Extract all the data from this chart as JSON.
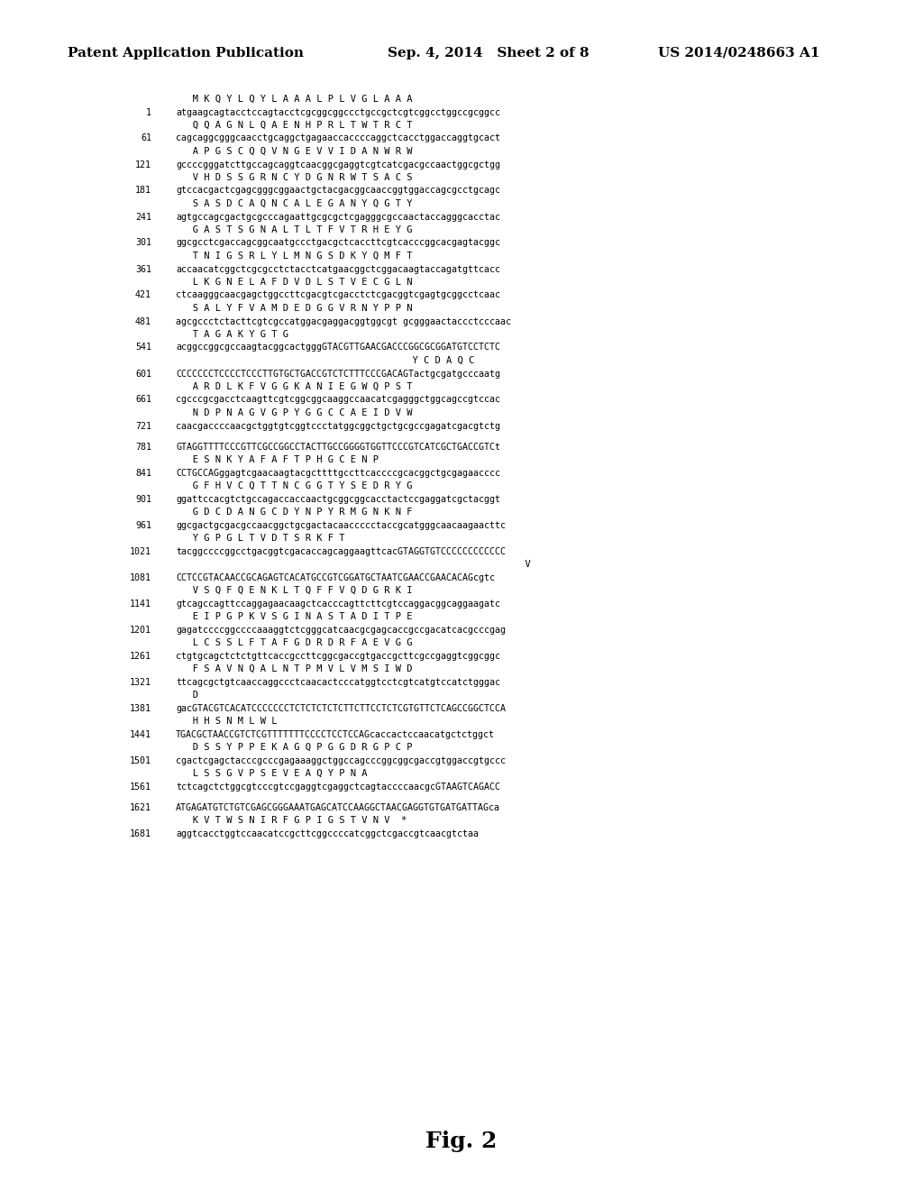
{
  "header_left": "Patent Application Publication",
  "header_mid": "Sep. 4, 2014   Sheet 2 of 8",
  "header_right": "US 2014/0248663 A1",
  "footer": "Fig. 2",
  "lines": [
    {
      "type": "aa",
      "indent": true,
      "text": "   M K Q Y L Q Y L A A A L P L V G L A A A"
    },
    {
      "type": "dna",
      "num": "1",
      "text": "atgaagcagtacctccagtacctcgcggcggccctgccgctcgtcggcctggccgcggcc"
    },
    {
      "type": "aa",
      "indent": false,
      "text": "   Q Q A G N L Q A E N H P R L T W T R C T"
    },
    {
      "type": "dna",
      "num": "61",
      "text": "cagcaggcgggcaacctgcaggctgagaaccaccccaggctcacctggaccaggtgcact"
    },
    {
      "type": "aa",
      "indent": false,
      "text": "   A P G S C Q Q V N G E V V I D A N W R W"
    },
    {
      "type": "dna",
      "num": "121",
      "text": "gccccgggatcttgccagcaggtcaacggcgaggtcgtcatcgacgccaactggcgctgg"
    },
    {
      "type": "aa",
      "indent": false,
      "text": "   V H D S S G R N C Y D G N R W T S A C S"
    },
    {
      "type": "dna",
      "num": "181",
      "text": "gtccacgactcgagcgggcggaactgctacgacggcaaccggtggaccagcgcctgcagc"
    },
    {
      "type": "aa",
      "indent": false,
      "text": "   S A S D C A Q N C A L E G A N Y Q G T Y"
    },
    {
      "type": "dna",
      "num": "241",
      "text": "agtgccagcgactgcgcccagaattgcgcgctcgagggcgccaactaccagggcacctac"
    },
    {
      "type": "aa",
      "indent": false,
      "text": "   G A S T S G N A L T L T F V T R H E Y G"
    },
    {
      "type": "dna",
      "num": "301",
      "text": "ggcgcctcgaccagcggcaatgccctgacgctcaccttcgtcacccggcacgagtacggc"
    },
    {
      "type": "aa",
      "indent": false,
      "text": "   T N I G S R L Y L M N G S D K Y Q M F T"
    },
    {
      "type": "dna",
      "num": "361",
      "text": "accaacatcggctcgcgcctctacctcatgaacggctcggacaagtaccagatgttcacc"
    },
    {
      "type": "aa",
      "indent": false,
      "text": "   L K G N E L A F D V D L S T V E C G L N"
    },
    {
      "type": "dna",
      "num": "421",
      "text": "ctcaagggcaacgagctggccttcgacgtcgacctctcgacggtcgagtgcggcctcaac"
    },
    {
      "type": "aa",
      "indent": false,
      "text": "   S A L Y F V A M D E D G G V R N Y P P N"
    },
    {
      "type": "dna",
      "num": "481",
      "text": "agcgccctctacttcgtcgccatggacgaggacggtggcgt gcgggaactaccctcccaac"
    },
    {
      "type": "aa",
      "indent": false,
      "text": "   T A G A K Y G T G"
    },
    {
      "type": "dna",
      "num": "541",
      "text": "acggccggcgccaagtacggcactgggGTACGTTGAACGACCCGGCGCGGATGTCCTCTC"
    },
    {
      "type": "aa",
      "indent": true,
      "text": "                                          Y C D A Q C"
    },
    {
      "type": "dna",
      "num": "601",
      "text": "CCCCCCCTCCCCTCCCTTGTGCTGACCGTCTCTTTCCCGACAGTactgcgatgcccaatg"
    },
    {
      "type": "aa",
      "indent": false,
      "text": "   A R D L K F V G G K A N I E G W Q P S T"
    },
    {
      "type": "dna",
      "num": "661",
      "text": "cgcccgcgacctcaagttcgtcggcggcaaggccaacatcgagggctggcagccgtccac"
    },
    {
      "type": "aa",
      "indent": false,
      "text": "   N D P N A G V G P Y G G C C A E I D V W"
    },
    {
      "type": "dna",
      "num": "721",
      "text": "caacgaccccaacgctggtgtcggtccctatggcggctgctgcgccgagatcgacgtctg"
    },
    {
      "type": "blank"
    },
    {
      "type": "dna",
      "num": "781",
      "text": "GTAGGTTTTCCCGTTCGCCGGCCTACTTGCCGGGGTGGTTCCCGTCATCGCTGACCGTCt"
    },
    {
      "type": "aa",
      "indent": false,
      "text": "   E S N K Y A F A F T P H G C E N P"
    },
    {
      "type": "dna",
      "num": "841",
      "text": "CCTGCCAGggagtcgaacaagtacgcttttgccttcaccccgcacggctgcgagaacccc"
    },
    {
      "type": "aa",
      "indent": false,
      "text": "   G F H V C Q T T N C G G T Y S E D R Y G"
    },
    {
      "type": "dna",
      "num": "901",
      "text": "ggattccacgtctgccagaccaccaactgcggcggcacctactccgaggatcgctacggt"
    },
    {
      "type": "aa",
      "indent": false,
      "text": "   G D C D A N G C D Y N P Y R M G N K N F"
    },
    {
      "type": "dna",
      "num": "961",
      "text": "ggcgactgcgacgccaacggctgcgactacaaccccctaccgcatgggcaacaagaacttc"
    },
    {
      "type": "aa",
      "indent": false,
      "text": "   Y G P G L T V D T S R K F T"
    },
    {
      "type": "dna",
      "num": "1021",
      "text": "tacggccccggcctgacggtcgacaccagcaggaagttcacGTAGGTGTCCCCCCCCCCCC"
    },
    {
      "type": "aa",
      "indent": true,
      "text": "                                                              V"
    },
    {
      "type": "dna",
      "num": "1081",
      "text": "CCTCCGTACAACCGCAGAGTCACATGCCGTCGGATGCTAATCGAACCGAACACAGcgtc"
    },
    {
      "type": "aa",
      "indent": false,
      "text": "   V S Q F Q E N K L T Q F F V Q D G R K I"
    },
    {
      "type": "dna",
      "num": "1141",
      "text": "gtcagccagttccaggagaacaagctcacccagttcttcgtccaggacggcaggaagatc"
    },
    {
      "type": "aa",
      "indent": false,
      "text": "   E I P G P K V S G I N A S T A D I T P E"
    },
    {
      "type": "dna",
      "num": "1201",
      "text": "gagatccccggccccaaaggtctcgggcatcaacgcgagcaccgccgacatcacgcccgag"
    },
    {
      "type": "aa",
      "indent": false,
      "text": "   L C S S L F T A F G D R D R F A E V G G"
    },
    {
      "type": "dna",
      "num": "1261",
      "text": "ctgtgcagctctctgttcaccgccttcggcgaccgtgaccgcttcgccgaggtcggcggc"
    },
    {
      "type": "aa",
      "indent": false,
      "text": "   F S A V N Q A L N T P M V L V M S I W D"
    },
    {
      "type": "dna",
      "num": "1321",
      "text": "ttcagcgctgtcaaccaggccctcaacactcccatggtcctcgtcatgtccatctgggac"
    },
    {
      "type": "aa",
      "indent": false,
      "text": "   D"
    },
    {
      "type": "dna",
      "num": "1381",
      "text": "gacGTACGTCACATCCCCCCCTCTCTCTCTCTTCTTCCTCTCGTGTTCTCAGCCGGCTCCA"
    },
    {
      "type": "aa",
      "indent": false,
      "text": "   H H S N M L W L"
    },
    {
      "type": "dna",
      "num": "1441",
      "text": "TGACGCTAACCGTCTCGTTTTTTTCCCCTCCTCCAGcaccactccaacatgctctggct"
    },
    {
      "type": "aa",
      "indent": false,
      "text": "   D S S Y P P E K A G Q P G G D R G P C P"
    },
    {
      "type": "dna",
      "num": "1501",
      "text": "cgactcgagctacccgcccgagaaaggctggccagcccggcggcgaccgtggaccgtgccc"
    },
    {
      "type": "aa",
      "indent": false,
      "text": "   L S S G V P S E V E A Q Y P N A"
    },
    {
      "type": "dna",
      "num": "1561",
      "text": "tctcagctctggcgtcccgtccgaggtcgaggctcagtaccccaacgcGTAAGTCAGACC"
    },
    {
      "type": "blank"
    },
    {
      "type": "dna",
      "num": "1621",
      "text": "ATGAGATGTCTGTCGAGCGGGAAATGAGCATCCAAGGCTAACGAGGTGTGATGATTAGca"
    },
    {
      "type": "aa",
      "indent": false,
      "text": "   K V T W S N I R F G P I G S T V N V  *"
    },
    {
      "type": "dna",
      "num": "1681",
      "text": "aggtcacctggtccaacatccgcttcggccccatcggctcgaccgtcaacgtctaa"
    }
  ]
}
